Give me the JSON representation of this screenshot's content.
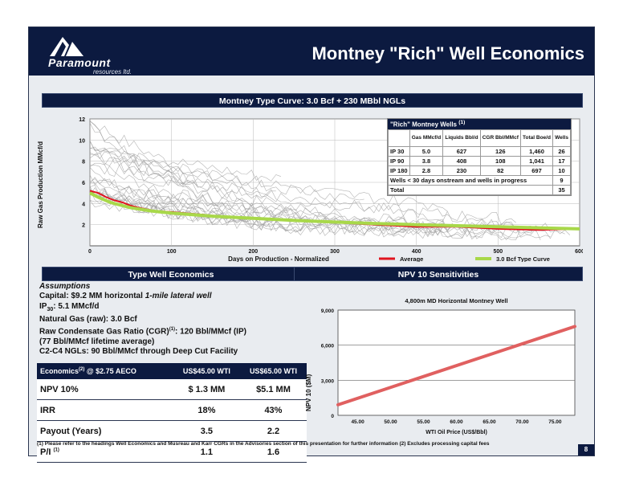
{
  "header": {
    "brand": "Paramount",
    "brand_sub": "resources ltd.",
    "title": "Montney  \"Rich\"  Well Economics"
  },
  "section_bars": {
    "type_curve": "Montney Type Curve: 3.0 Bcf + 230 MBbl NGLs",
    "type_well": "Type Well Economics",
    "npv": "NPV 10 Sensitivities"
  },
  "overlay_table": {
    "caption": "\"Rich\" Montney Wells",
    "caption_sup": "(1)",
    "columns": [
      "Gas MMcf/d",
      "Liquids Bbl/d",
      "CGR Bbl/MMcf",
      "Total Boe/d",
      "Wells"
    ],
    "rows": [
      {
        "label": "IP 30",
        "gas": "5.0",
        "liquids": "627",
        "cgr": "126",
        "total": "1,460",
        "wells": "26"
      },
      {
        "label": "IP 90",
        "gas": "3.8",
        "liquids": "408",
        "cgr": "108",
        "total": "1,041",
        "wells": "17"
      },
      {
        "label": "IP 180",
        "gas": "2.8",
        "liquids": "230",
        "cgr": "82",
        "total": "697",
        "wells": "10"
      }
    ],
    "note_row": {
      "label": "Wells < 30 days onstream and wells in progress",
      "wells": "9"
    },
    "total_row": {
      "label": "Total",
      "wells": "35"
    }
  },
  "assumptions": {
    "heading": "Assumptions",
    "capital_a": "Capital: $9.2 MM horizontal ",
    "capital_b": "1-mile lateral well",
    "ip_a": "IP",
    "ip_sub": "30",
    "ip_b": ": 5.1 MMcf/d",
    "gas": "Natural Gas (raw): 3.0 Bcf",
    "cgr_a": "Raw Condensate Gas Ratio (CGR)",
    "cgr_sup": "(1)",
    "cgr_b": ": 120 Bbl/MMcf  (IP)",
    "cgr_life": "(77 Bbl/MMcf lifetime average)",
    "ngl": "C2-C4 NGLs: 90 Bbl/MMcf through Deep Cut Facility"
  },
  "economics": {
    "header_a": "Economics",
    "header_sup": "(2)",
    "header_b": " @ $2.75 AECO",
    "col1": "US$45.00  WTI",
    "col2": "US$65.00 WTI",
    "rows": [
      {
        "label": "NPV 10%",
        "v1": "$ 1.3 MM",
        "v2": "$5.1 MM"
      },
      {
        "label": "IRR",
        "v1": "18%",
        "v2": "43%"
      },
      {
        "label": "Payout (Years)",
        "v1": "3.5",
        "v2": "2.2"
      }
    ],
    "pi_label": "P/I",
    "pi_sup": "(1)",
    "pi_v1": "1.1",
    "pi_v2": "1.6"
  },
  "footnote": "(1) Please refer to the headings Well Economics and Musreau and Karr CGRs in the Advisories section of this presentation for further information (2) Excludes processing capital fees",
  "page_number": "8",
  "chart_data": [
    {
      "type": "line",
      "title": "",
      "xlabel": "Days on Production - Normalized",
      "ylabel": "Raw Gas Production MMcf/d",
      "xlim": [
        0,
        600
      ],
      "ylim": [
        0,
        12
      ],
      "x_ticks": [
        0,
        100,
        200,
        300,
        400,
        500,
        600
      ],
      "y_ticks": [
        2,
        4,
        6,
        8,
        10,
        12
      ],
      "legend": "bottom",
      "series": [
        {
          "name": "Average",
          "color": "#e0141e",
          "x": [
            0,
            10,
            20,
            30,
            40,
            50,
            60,
            80,
            100,
            130,
            160,
            200,
            250,
            300,
            350,
            400,
            450,
            500,
            550,
            600
          ],
          "y": [
            5.2,
            5.0,
            4.6,
            4.3,
            4.1,
            3.8,
            3.6,
            3.3,
            3.2,
            3.0,
            2.8,
            2.6,
            2.4,
            2.2,
            2.0,
            1.8,
            1.8,
            1.6,
            1.5,
            1.6
          ]
        },
        {
          "name": "3.0 Bcf Type Curve",
          "color": "#a8d84a",
          "x": [
            0,
            10,
            25,
            50,
            75,
            100,
            150,
            200,
            250,
            300,
            350,
            400,
            450,
            500,
            550,
            600
          ],
          "y": [
            5.0,
            4.6,
            4.1,
            3.6,
            3.3,
            3.1,
            2.8,
            2.6,
            2.4,
            2.25,
            2.1,
            2.0,
            1.9,
            1.8,
            1.7,
            1.6
          ]
        }
      ]
    },
    {
      "type": "line",
      "title": "4,800m MD Horizontal Montney Well",
      "xlabel": "WTI Oil Price (US$/Bbl)",
      "ylabel": "NPV 10 ($M)",
      "xlim": [
        42,
        78
      ],
      "ylim": [
        0,
        9000
      ],
      "x_ticks": [
        "45.00",
        "50.00",
        "55.00",
        "60.00",
        "65.00",
        "70.00",
        "75.00"
      ],
      "y_ticks": [
        "0",
        "3,000",
        "6,000",
        "9,000"
      ],
      "series": [
        {
          "color": "#e06060",
          "x": [
            42,
            78
          ],
          "y": [
            900,
            7600
          ]
        }
      ]
    }
  ]
}
